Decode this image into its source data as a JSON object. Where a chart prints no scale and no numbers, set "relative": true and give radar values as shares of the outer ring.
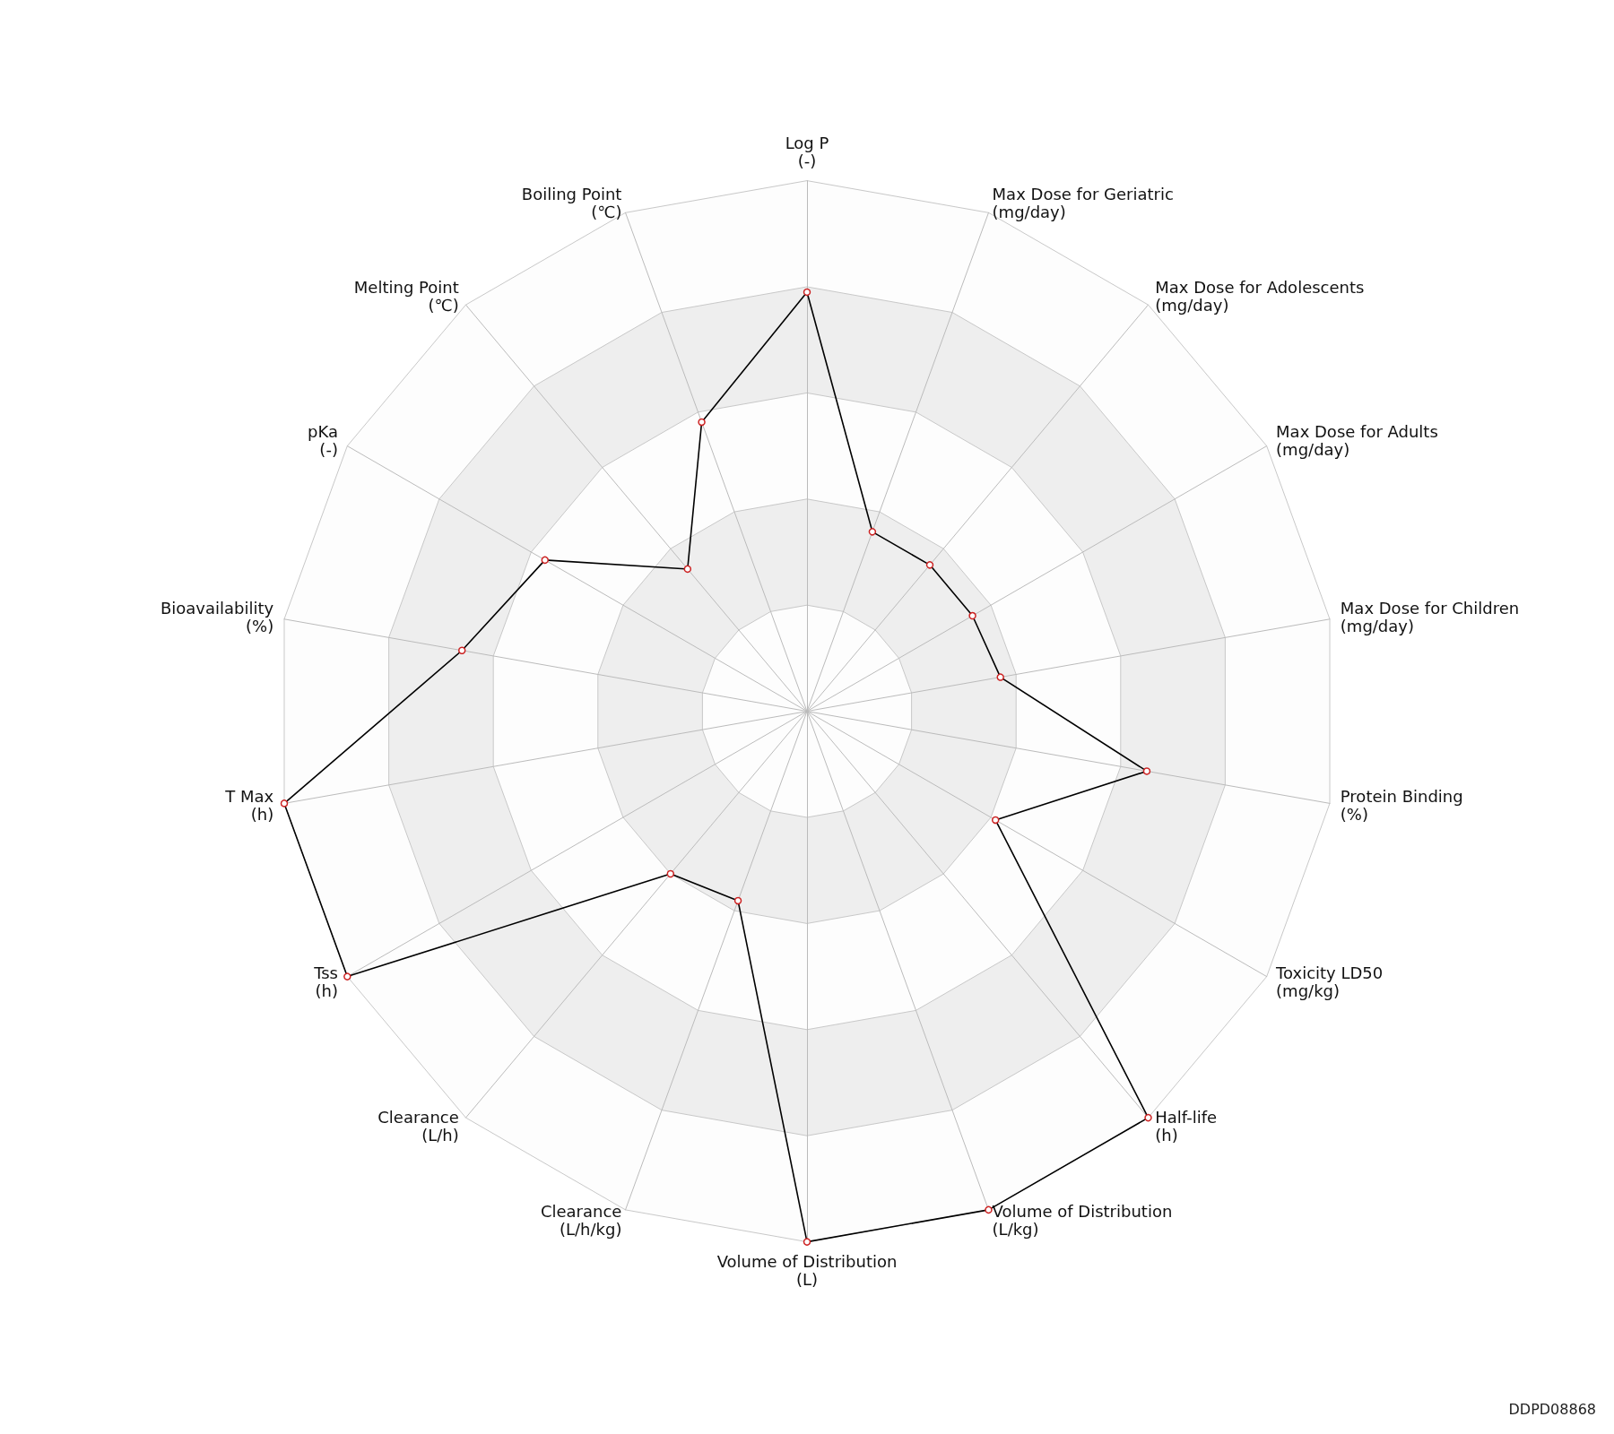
{
  "chart_data": {
    "type": "radar",
    "relative": true,
    "categories": [
      "Log P\n(-)",
      "Max Dose for Geriatric\n(mg/day)",
      "Max Dose for Adolescents\n(mg/day)",
      "Max Dose for Adults\n(mg/day)",
      "Max Dose for Children\n(mg/day)",
      "Protein Binding\n(%)",
      "Toxicity LD50\n(mg/kg)",
      "Half-life\n(h)",
      "Volume of Distribution\n(L/kg)",
      "Volume of Distribution\n(L)",
      "Clearance\n(L/h/kg)",
      "Clearance\n(L/h)",
      "Tss\n(h)",
      "T Max\n(h)",
      "Bioavailability\n(%)",
      "pKa\n(-)",
      "Melting Point\n(℃)",
      "Boiling Point\n(℃)"
    ],
    "series": [
      {
        "color": "#000000",
        "values": [
          0.79,
          0.36,
          0.36,
          0.36,
          0.37,
          0.65,
          0.41,
          1.0,
          1.0,
          1.0,
          0.38,
          0.4,
          1.0,
          1.0,
          0.66,
          0.57,
          0.35,
          0.58
        ]
      }
    ],
    "marker": "circle",
    "annotations": [
      "DDPD08868"
    ]
  }
}
